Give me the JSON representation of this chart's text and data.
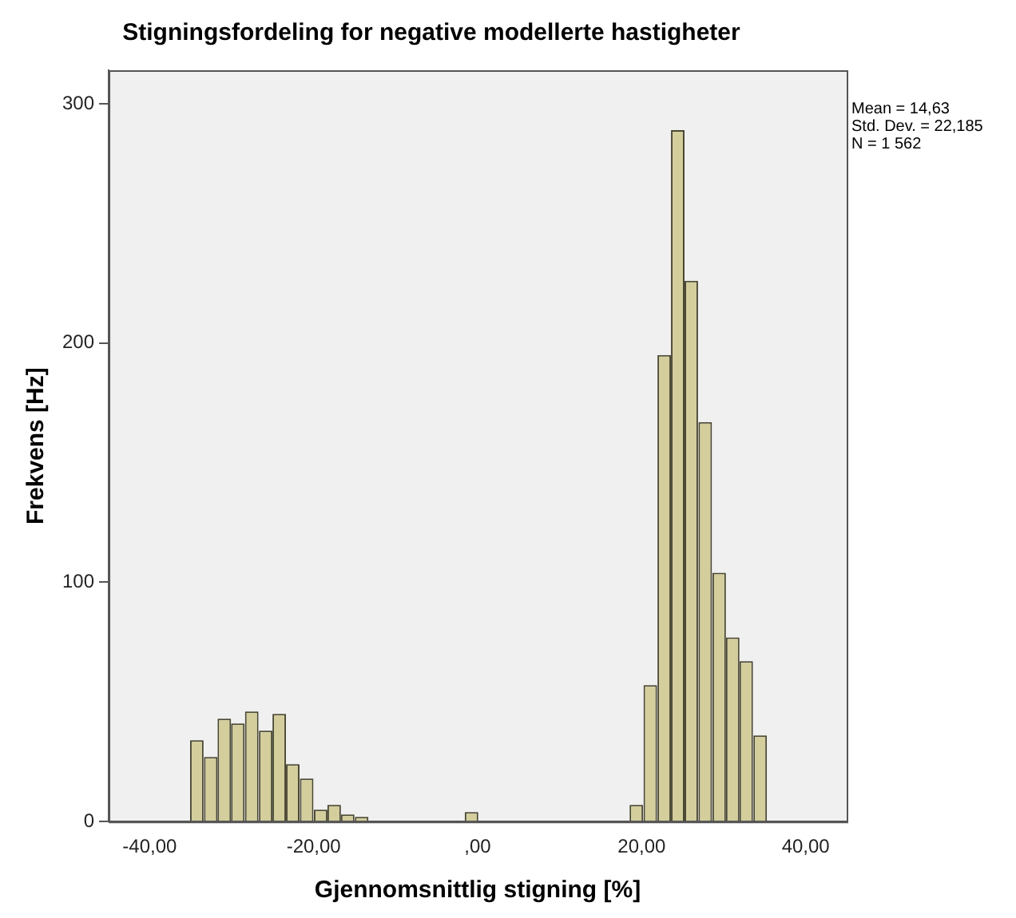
{
  "chart_data": {
    "type": "histogram",
    "title": "Stigningsfordeling for negative modellerte hastigheter",
    "xlabel": "Gjennomsnittlig stigning [%]",
    "ylabel": "Frekvens [Hz]",
    "bins": [
      -35.1,
      -33.4,
      -31.7,
      -30.1,
      -28.4,
      -26.7,
      -25.0,
      -23.4,
      -21.7,
      -20.0,
      -18.3,
      -16.7,
      -15.0,
      -13.3,
      -1.6,
      0.1,
      18.5,
      20.2,
      21.9,
      23.6,
      25.2,
      26.9,
      28.6,
      30.3,
      31.9,
      33.6,
      35.3
    ],
    "values": [
      34,
      27,
      43,
      41,
      46,
      38,
      45,
      24,
      18,
      5,
      7,
      3,
      2,
      0,
      4,
      0,
      7,
      57,
      195,
      289,
      226,
      167,
      104,
      77,
      67,
      36
    ],
    "color": "#d3ce9c",
    "xlim": [
      -45,
      45
    ],
    "ylim": [
      0,
      314
    ],
    "xticks": [
      {
        "value": -40,
        "label": "-40,00"
      },
      {
        "value": -20,
        "label": "-20,00"
      },
      {
        "value": 0,
        "label": ",00"
      },
      {
        "value": 20,
        "label": "20,00"
      },
      {
        "value": 40,
        "label": "40,00"
      }
    ],
    "yticks": [
      0,
      100,
      200,
      300
    ],
    "grid": false,
    "annotations": [
      "Mean = 14,63",
      "Std. Dev. = 22,185",
      "N = 1 562"
    ]
  }
}
